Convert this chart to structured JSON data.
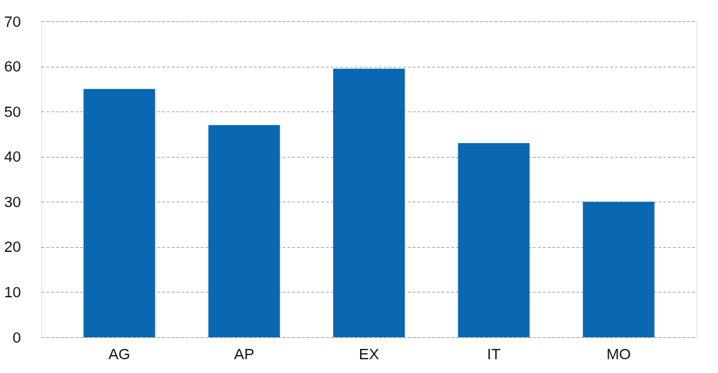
{
  "chart_data": {
    "type": "bar",
    "categories": [
      "AG",
      "AP",
      "EX",
      "IT",
      "MO"
    ],
    "values": [
      55,
      47,
      59.5,
      43,
      30
    ],
    "color": "#0a67b1",
    "ylim": [
      0,
      70
    ],
    "yticks": [
      0,
      10,
      20,
      30,
      40,
      50,
      60,
      70
    ],
    "grid": "y"
  }
}
